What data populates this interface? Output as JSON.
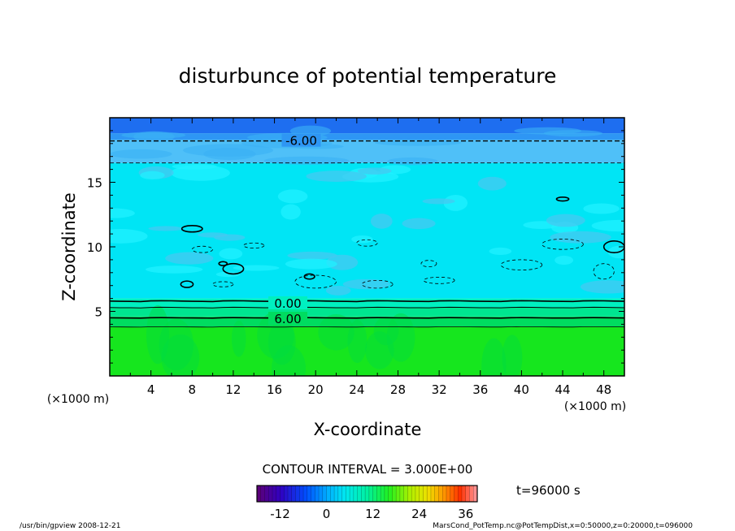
{
  "chart_data": {
    "type": "heatmap",
    "title": "disturbunce of potential temperature",
    "xlabel": "X-coordinate",
    "ylabel": "Z-coordinate",
    "x_unit": "(×1000 m)",
    "z_unit": "(×1000 m)",
    "xlim": [
      0,
      50
    ],
    "zlim": [
      0,
      20
    ],
    "x_ticks": [
      "4",
      "8",
      "12",
      "16",
      "20",
      "24",
      "28",
      "32",
      "36",
      "40",
      "44",
      "48"
    ],
    "x_tick_values": [
      4,
      8,
      12,
      16,
      20,
      24,
      28,
      32,
      36,
      40,
      44,
      48
    ],
    "z_ticks": [
      "5",
      "10",
      "15"
    ],
    "z_tick_values": [
      5,
      10,
      15
    ],
    "contour_interval_label": "CONTOUR INTERVAL = 3.000E+00",
    "contour_labels": [
      {
        "text": "-6.00",
        "x": 18.6,
        "z": 18.2
      },
      {
        "text": "0.00",
        "x": 17.3,
        "z": 5.6
      },
      {
        "text": "6.00",
        "x": 17.3,
        "z": 4.4
      }
    ],
    "time_label": "t=96000 s",
    "colorbar": {
      "range": [
        -18,
        39
      ],
      "tick_labels": [
        "-12",
        "0",
        "12",
        "24",
        "36"
      ],
      "tick_values": [
        -12,
        0,
        12,
        24,
        36
      ]
    },
    "layers": [
      {
        "z_from": 18.8,
        "z_to": 20.0,
        "value": -9,
        "color": "#1e6ef0"
      },
      {
        "z_from": 18.3,
        "z_to": 18.8,
        "value": -6,
        "color": "#2e96f4"
      },
      {
        "z_from": 16.5,
        "z_to": 18.3,
        "value": -3,
        "color": "#4fc0f8"
      },
      {
        "z_from": 6.0,
        "z_to": 16.5,
        "value": 0,
        "color": "#00e5f5"
      },
      {
        "z_from": 5.3,
        "z_to": 6.0,
        "value": 2,
        "color": "#00f0c0"
      },
      {
        "z_from": 4.6,
        "z_to": 5.3,
        "value": 4,
        "color": "#00e690"
      },
      {
        "z_from": 3.8,
        "z_to": 4.6,
        "value": 6,
        "color": "#00dc60"
      },
      {
        "z_from": 0.0,
        "z_to": 3.8,
        "value": 9,
        "color": "#16e61e"
      }
    ]
  },
  "footer": {
    "left": "/usr/bin/gpview   2008-12-21",
    "right": "MarsCond_PotTemp.nc@PotTempDist,x=0:50000,z=0:20000,t=096000"
  }
}
